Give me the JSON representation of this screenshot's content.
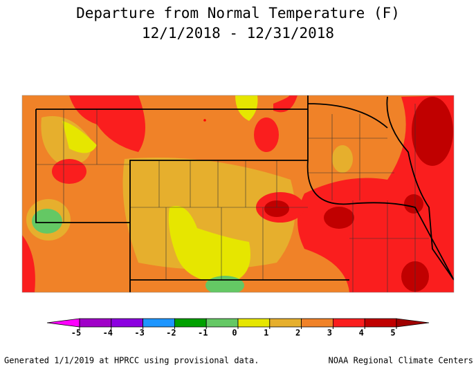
{
  "title": [
    "Departure from Normal Temperature (F)",
    "12/1/2018 - 12/31/2018"
  ],
  "legend": {
    "ticks": [
      -5,
      -4,
      -3,
      -2,
      -1,
      0,
      1,
      2,
      3,
      4,
      5
    ],
    "colors": [
      "#ff00ff",
      "#a000c8",
      "#8c00e0",
      "#1e96ff",
      "#00a000",
      "#64c864",
      "#e6e600",
      "#e6af2d",
      "#f08228",
      "#fa1e1e",
      "#c00000",
      "#a00000"
    ]
  },
  "footer": {
    "left": "Generated 1/1/2019 at HPRCC using provisional data.",
    "right": "NOAA Regional Climate Centers"
  }
}
